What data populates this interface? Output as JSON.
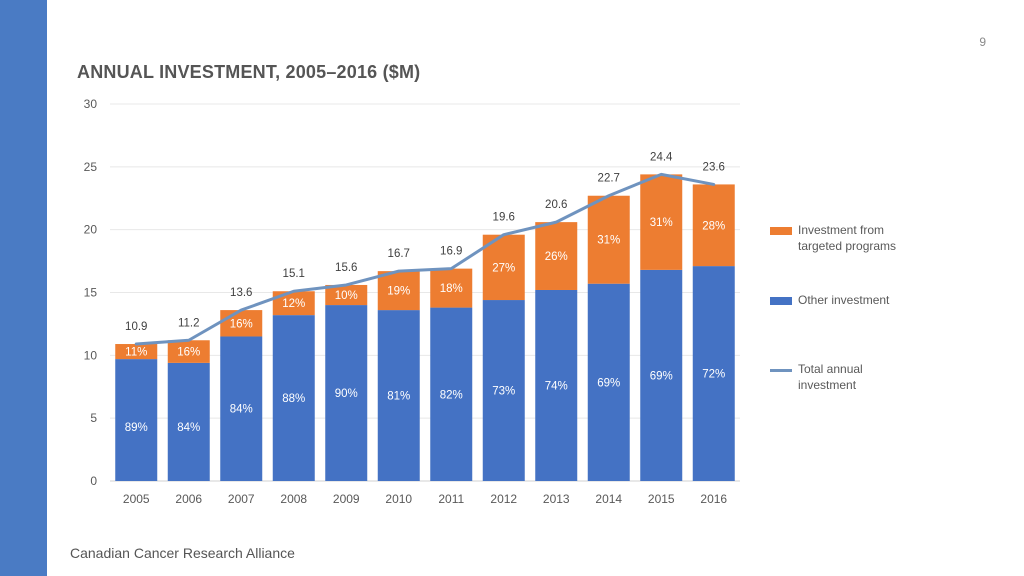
{
  "page": {
    "number": "9",
    "footer": "Canadian Cancer Research Alliance"
  },
  "colors": {
    "targeted": "#ed7d31",
    "other": "#4472c4",
    "total_line": "#6f93bf",
    "sidebar": "#4a7bc4"
  },
  "chart_data": {
    "type": "bar",
    "stacked": true,
    "title": "ANNUAL INVESTMENT, 2005–2016 ($M)",
    "xlabel": "",
    "ylabel": "",
    "ylim": [
      0,
      30
    ],
    "yticks": [
      0,
      5,
      10,
      15,
      20,
      25,
      30
    ],
    "grid": true,
    "legend_position": "right",
    "categories": [
      "2005",
      "2006",
      "2007",
      "2008",
      "2009",
      "2010",
      "2011",
      "2012",
      "2013",
      "2014",
      "2015",
      "2016"
    ],
    "series": [
      {
        "name": "Other investment",
        "type": "bar",
        "values": [
          9.7,
          9.4,
          11.5,
          13.2,
          14.0,
          13.6,
          13.8,
          14.4,
          15.2,
          15.7,
          16.8,
          17.1
        ],
        "labels": [
          "89%",
          "84%",
          "84%",
          "88%",
          "90%",
          "81%",
          "82%",
          "73%",
          "74%",
          "69%",
          "69%",
          "72%"
        ]
      },
      {
        "name": "Investment from targeted programs",
        "type": "bar",
        "values": [
          1.2,
          1.8,
          2.1,
          1.9,
          1.6,
          3.1,
          3.1,
          5.2,
          5.4,
          7.0,
          7.6,
          6.5
        ],
        "labels": [
          "11%",
          "16%",
          "16%",
          "12%",
          "10%",
          "19%",
          "18%",
          "27%",
          "26%",
          "31%",
          "31%",
          "28%"
        ]
      },
      {
        "name": "Total annual investment",
        "type": "line",
        "values": [
          10.9,
          11.2,
          13.6,
          15.1,
          15.6,
          16.7,
          16.9,
          19.6,
          20.6,
          22.7,
          24.4,
          23.6
        ],
        "labels": [
          "10.9",
          "11.2",
          "13.6",
          "15.1",
          "15.6",
          "16.7",
          "16.9",
          "19.6",
          "20.6",
          "22.7",
          "24.4",
          "23.6"
        ]
      }
    ]
  },
  "legend": {
    "targeted": "Investment from targeted programs",
    "other": "Other investment",
    "total": "Total annual investment"
  }
}
